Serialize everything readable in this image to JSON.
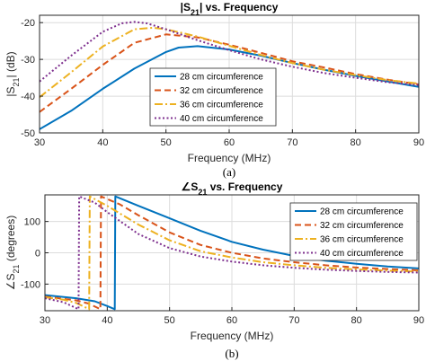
{
  "chart_data": [
    {
      "type": "line",
      "title_prefix": "|S",
      "title_sub": "21",
      "title_suffix": "| vs. Frequency",
      "xlabel": "Frequency (MHz)",
      "ylabel_prefix": "|S",
      "ylabel_sub": "21",
      "ylabel_suffix": "| (dB)",
      "caption": "(a)",
      "xlim": [
        30,
        90
      ],
      "ylim": [
        -50,
        -18
      ],
      "xticks": [
        30,
        40,
        50,
        60,
        70,
        80,
        90
      ],
      "yticks": [
        -50,
        -40,
        -30,
        -20
      ],
      "grid": true,
      "legend_position": "center",
      "series": [
        {
          "name": "28 cm circumference",
          "color": "#0072BD",
          "dash": "solid",
          "x": [
            30,
            35,
            40,
            45,
            50,
            52,
            55,
            60,
            65,
            70,
            75,
            80,
            85,
            90
          ],
          "y": [
            -49.0,
            -44.0,
            -38.0,
            -32.5,
            -28.0,
            -26.8,
            -26.4,
            -27.3,
            -29.0,
            -31.0,
            -32.8,
            -34.5,
            -36.0,
            -37.5
          ]
        },
        {
          "name": "32 cm circumference",
          "color": "#D95319",
          "dash": "dashed",
          "x": [
            30,
            35,
            40,
            45,
            50,
            55,
            60,
            65,
            70,
            75,
            80,
            85,
            90
          ],
          "y": [
            -44.3,
            -38.0,
            -31.5,
            -25.5,
            -23.2,
            -24.0,
            -26.0,
            -28.2,
            -30.5,
            -32.2,
            -34.0,
            -35.5,
            -36.8
          ]
        },
        {
          "name": "36 cm circumference",
          "color": "#EDB120",
          "dash": "dashdot",
          "x": [
            30,
            35,
            40,
            45,
            48,
            50,
            55,
            60,
            65,
            70,
            75,
            80,
            85,
            90
          ],
          "y": [
            -40.3,
            -33.5,
            -26.5,
            -21.8,
            -21.4,
            -21.8,
            -23.8,
            -26.3,
            -28.8,
            -31.0,
            -32.8,
            -34.3,
            -35.6,
            -36.6
          ]
        },
        {
          "name": "40 cm circumference",
          "color": "#7E2F8E",
          "dash": "dotted",
          "x": [
            30,
            35,
            40,
            43,
            45,
            47,
            50,
            55,
            60,
            65,
            70,
            75,
            80,
            85,
            90
          ],
          "y": [
            -36.0,
            -29.0,
            -22.5,
            -20.2,
            -19.8,
            -20.2,
            -21.8,
            -24.8,
            -27.5,
            -30.0,
            -32.0,
            -33.7,
            -35.0,
            -36.2,
            -37.0
          ]
        }
      ]
    },
    {
      "type": "line",
      "title_prefix": "∠S",
      "title_sub": "21",
      "title_suffix": " vs. Frequency",
      "xlabel": "Frequency (MHz)",
      "ylabel_prefix": "∠S",
      "ylabel_sub": "21",
      "ylabel_suffix": " (degrees)",
      "caption": "(b)",
      "xlim": [
        30,
        90
      ],
      "ylim": [
        -185,
        185
      ],
      "xticks": [
        30,
        40,
        50,
        60,
        70,
        80,
        90
      ],
      "yticks": [
        -100,
        0,
        100
      ],
      "grid": true,
      "legend_position": "top-right",
      "series": [
        {
          "name": "28 cm circumference",
          "color": "#0072BD",
          "dash": "solid",
          "x": [
            30,
            35,
            38,
            40,
            41.2,
            41.3,
            45,
            50,
            55,
            60,
            65,
            70,
            75,
            80,
            85,
            90
          ],
          "y": [
            -135,
            -145,
            -155,
            -170,
            -180,
            180,
            150,
            110,
            70,
            35,
            10,
            -10,
            -25,
            -35,
            -44,
            -50
          ]
        },
        {
          "name": "32 cm circumference",
          "color": "#D95319",
          "dash": "dashed",
          "x": [
            30,
            35,
            37,
            38.9,
            39.0,
            42,
            45,
            50,
            55,
            60,
            65,
            70,
            75,
            80,
            85,
            90
          ],
          "y": [
            -140,
            -152,
            -162,
            -180,
            180,
            155,
            120,
            65,
            25,
            0,
            -18,
            -30,
            -40,
            -47,
            -52,
            -56
          ]
        },
        {
          "name": "36 cm circumference",
          "color": "#EDB120",
          "dash": "dashdot",
          "x": [
            30,
            33,
            35,
            37.1,
            37.2,
            40,
            45,
            50,
            55,
            60,
            65,
            70,
            75,
            80,
            85,
            90
          ],
          "y": [
            -142,
            -150,
            -160,
            -180,
            180,
            150,
            90,
            40,
            5,
            -15,
            -30,
            -40,
            -48,
            -53,
            -57,
            -60
          ]
        },
        {
          "name": "40 cm circumference",
          "color": "#7E2F8E",
          "dash": "dotted",
          "x": [
            30,
            33,
            35.4,
            35.5,
            38,
            40,
            45,
            50,
            55,
            60,
            65,
            70,
            75,
            80,
            85,
            90
          ],
          "y": [
            -145,
            -158,
            -180,
            180,
            160,
            130,
            60,
            15,
            -12,
            -28,
            -40,
            -48,
            -54,
            -58,
            -61,
            -63
          ]
        }
      ]
    }
  ]
}
